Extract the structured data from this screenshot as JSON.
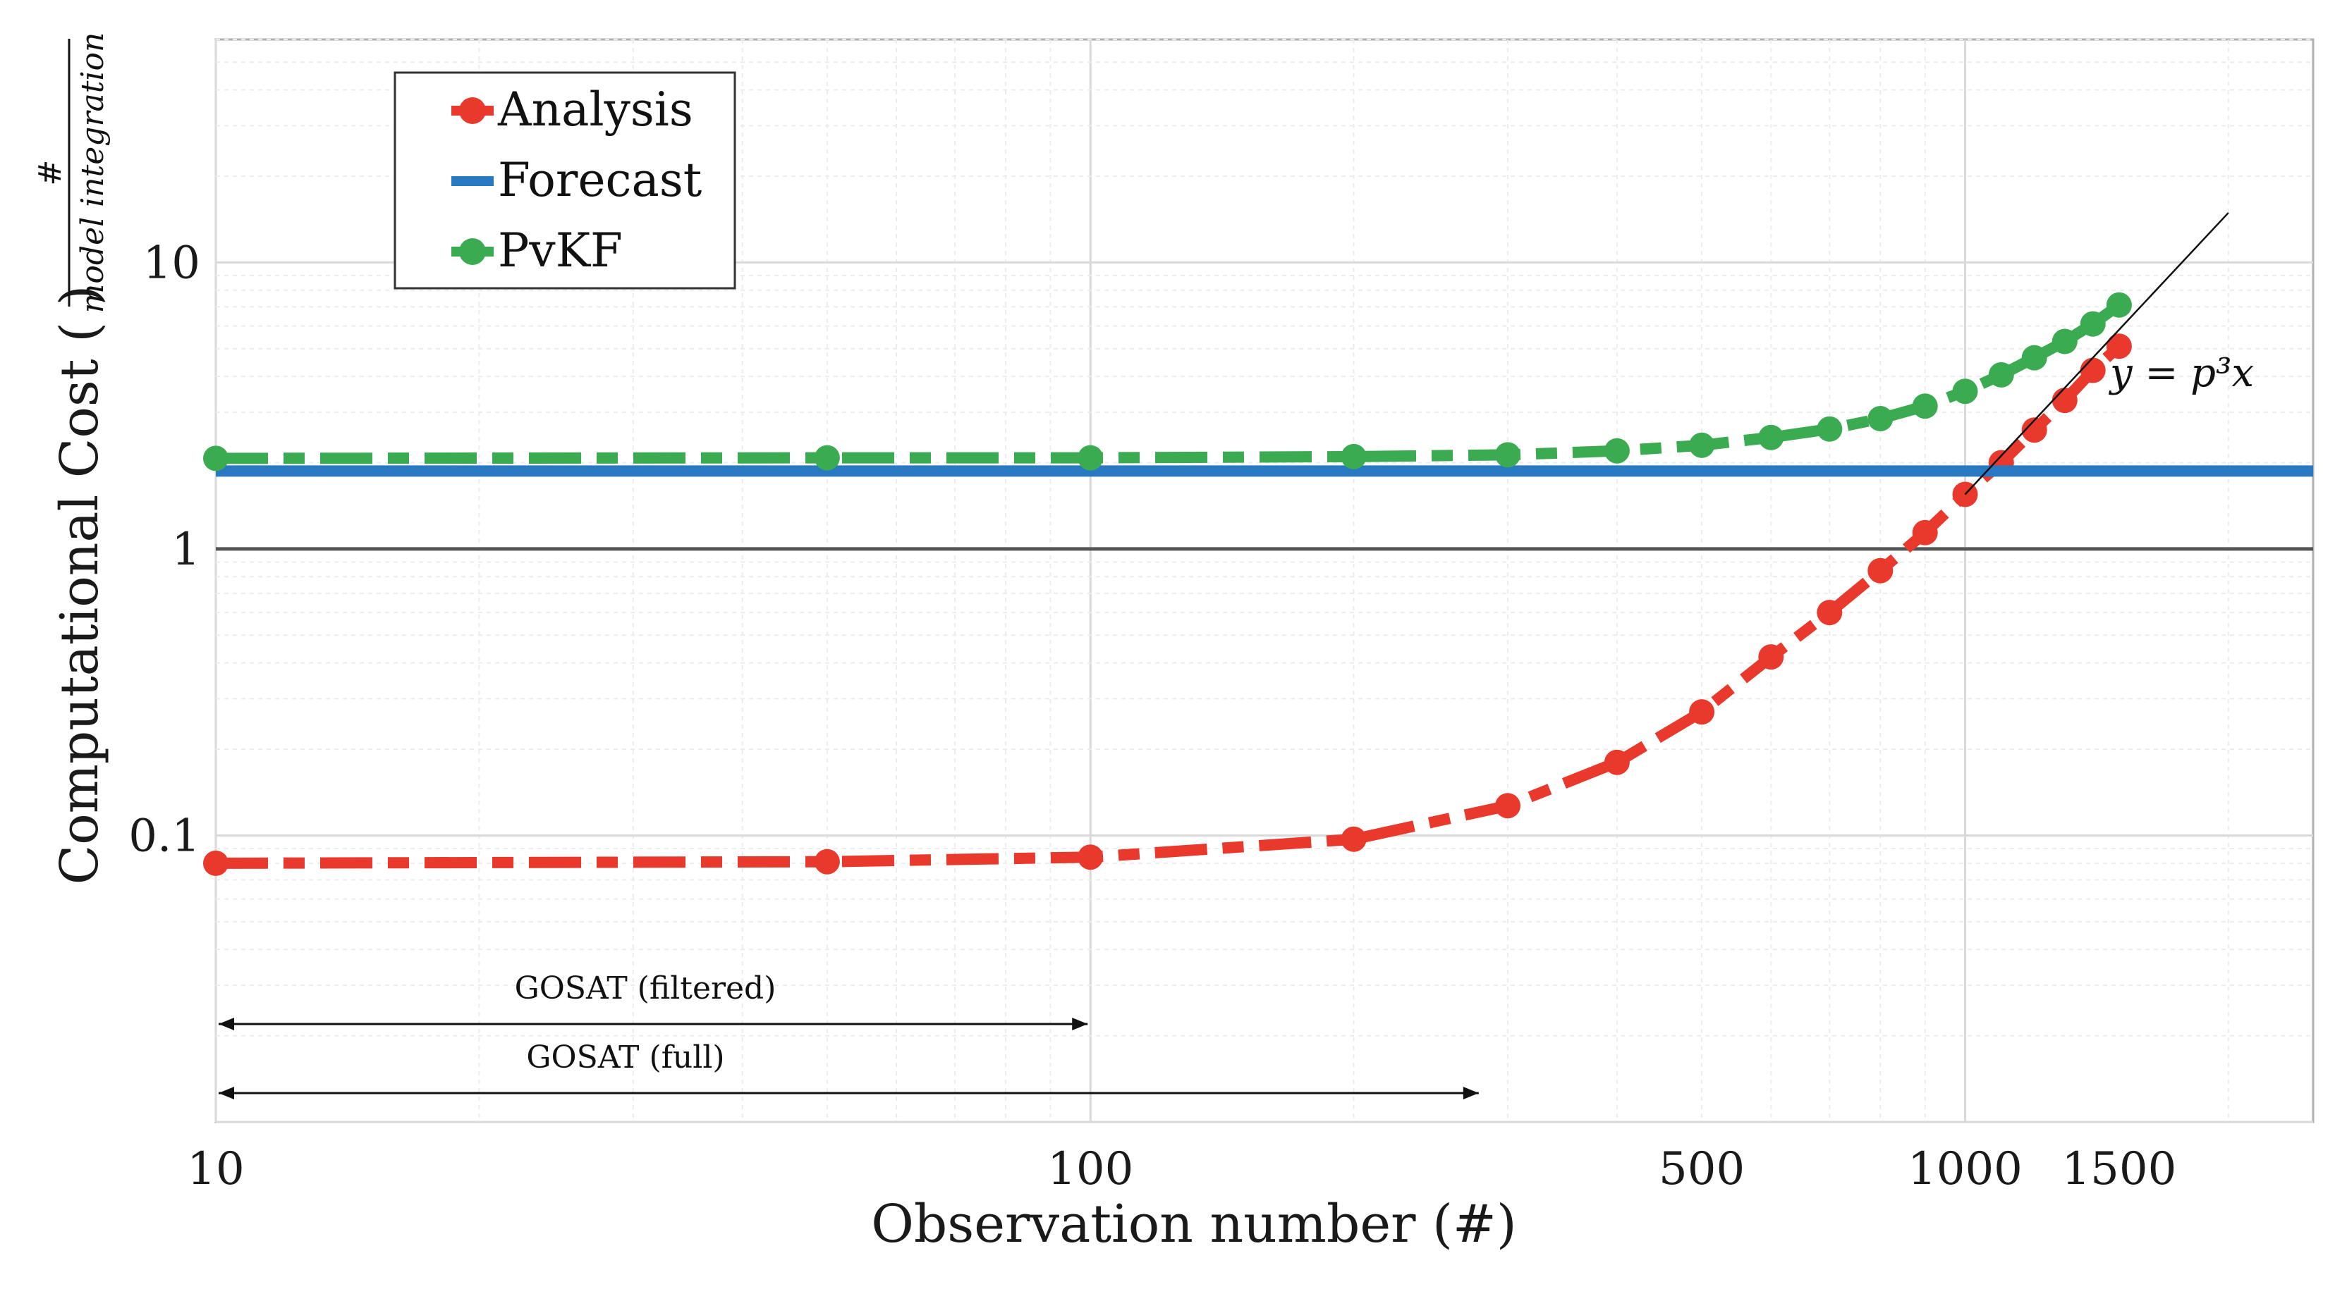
{
  "chart_data": {
    "type": "line",
    "xscale": "log",
    "yscale": "log",
    "xlim": [
      10,
      2500
    ],
    "ylim": [
      0.01,
      60
    ],
    "xlabel": "Observation number (#)",
    "ylabel": "Computational Cost",
    "ylabel_frac": {
      "numerator": "#",
      "denominator": "model integration"
    },
    "xticks": [
      {
        "value": 10,
        "label": "10"
      },
      {
        "value": 100,
        "label": "100"
      },
      {
        "value": 500,
        "label": "500"
      },
      {
        "value": 1000,
        "label": "1000"
      },
      {
        "value": 1500,
        "label": "1500"
      }
    ],
    "yticks": [
      {
        "value": 0.1,
        "label": "0.1"
      },
      {
        "value": 1,
        "label": "1"
      },
      {
        "value": 10,
        "label": "10"
      }
    ],
    "reference_line_y": 1,
    "legend_position": "top-left",
    "series": [
      {
        "name": "Analysis",
        "color": "#e8392c",
        "style": "dash-dot-markers",
        "x": [
          10,
          50,
          100,
          200,
          300,
          400,
          500,
          600,
          700,
          800,
          900,
          1000,
          1100,
          1200,
          1300,
          1400,
          1500
        ],
        "y": [
          0.08,
          0.081,
          0.084,
          0.097,
          0.127,
          0.18,
          0.27,
          0.42,
          0.6,
          0.84,
          1.14,
          1.55,
          2.0,
          2.6,
          3.3,
          4.2,
          5.1
        ]
      },
      {
        "name": "Forecast",
        "color": "#2878c2",
        "style": "solid",
        "x": [
          10,
          2500
        ],
        "y": [
          1.87,
          1.87
        ]
      },
      {
        "name": "PvKF",
        "color": "#3bab52",
        "style": "dash-dot-markers",
        "x": [
          10,
          50,
          100,
          200,
          300,
          400,
          500,
          600,
          700,
          800,
          900,
          1000,
          1100,
          1200,
          1300,
          1400,
          1500
        ],
        "y": [
          2.07,
          2.08,
          2.08,
          2.1,
          2.13,
          2.2,
          2.3,
          2.45,
          2.62,
          2.85,
          3.15,
          3.55,
          4.05,
          4.65,
          5.3,
          6.1,
          7.1
        ]
      }
    ],
    "fit_line": {
      "label": "y = p³x",
      "x": [
        1000,
        2000
      ],
      "y": [
        1.55,
        14.9
      ]
    },
    "annotations": [
      {
        "label": "GOSAT  (filtered)",
        "x_from": 10,
        "x_to": 100
      },
      {
        "label": "GOSAT  (full)",
        "x_from": 10,
        "x_to": 280
      }
    ]
  }
}
